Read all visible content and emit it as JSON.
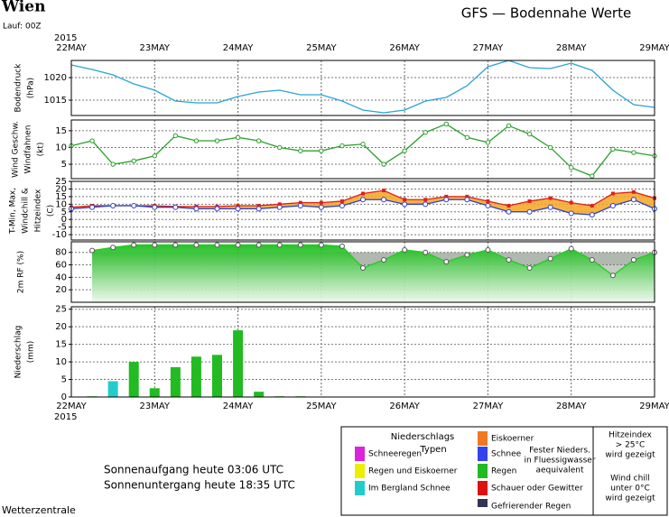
{
  "header": {
    "title": "Wien",
    "run": "Lauf: 00Z",
    "model": "GFS — Bodennahe Werte"
  },
  "time_axis": {
    "year": "2015",
    "labels": [
      "22MAY",
      "23MAY",
      "24MAY",
      "25MAY",
      "26MAY",
      "27MAY",
      "28MAY",
      "29MAY"
    ]
  },
  "chart_data": [
    {
      "type": "line",
      "ylabel": [
        "Bodendruck",
        "(hPa)"
      ],
      "ylim": [
        1011.6,
        1023.8
      ],
      "yticks": [
        1015,
        1020
      ],
      "grid": true,
      "series": [
        {
          "color": "#29a3d6",
          "values": [
            1022.8,
            1021.8,
            1020.6,
            1018.6,
            1017.2,
            1014.8,
            1014.4,
            1014.4,
            1015.8,
            1016.8,
            1017.2,
            1016.2,
            1016.2,
            1014.8,
            1012.8,
            1012.2,
            1012.8,
            1014.8,
            1015.6,
            1018.2,
            1022.4,
            1023.8,
            1022.2,
            1022,
            1023.2,
            1021.6,
            1017.2,
            1014,
            1013.4
          ]
        }
      ]
    },
    {
      "type": "line",
      "ylabel": [
        "Wind Geschw.",
        "Windfahnen",
        "(kt)"
      ],
      "ylim": [
        0.7,
        18.2
      ],
      "yticks": [
        5,
        10,
        15
      ],
      "grid": true,
      "markers": true,
      "series": [
        {
          "color": "#2ca02c",
          "values": [
            10.5,
            12,
            5,
            6,
            7.5,
            13.5,
            12,
            12,
            13,
            12,
            10,
            9,
            9,
            10.5,
            11,
            5,
            9,
            14.5,
            17,
            13,
            11.5,
            16.5,
            14,
            10,
            4,
            1.5,
            9.5,
            8.5,
            7.5
          ]
        }
      ]
    },
    {
      "type": "band",
      "ylabel": [
        "T-Min, Max,",
        "Windchill &",
        "Hitzeindex",
        "(C)"
      ],
      "ylim": [
        -13.5,
        25
      ],
      "yticks": [
        -10,
        -5,
        0,
        5,
        10,
        15,
        20,
        25
      ],
      "grid": true,
      "fill": "#f5a623",
      "series": [
        {
          "color": "#e0201b",
          "values": [
            8,
            9,
            9,
            9,
            9,
            8.5,
            8.5,
            8.5,
            9,
            9,
            10,
            11,
            11,
            12,
            17,
            19,
            13,
            13,
            15,
            15,
            12,
            9,
            12,
            14,
            11,
            9,
            17,
            18,
            14
          ]
        },
        {
          "color": "#2b3fd1",
          "values": [
            7,
            8,
            9,
            9,
            8,
            8,
            7,
            7,
            7,
            7,
            8,
            9,
            8,
            9,
            13,
            13,
            10,
            10,
            13,
            13,
            9,
            5,
            5,
            8,
            4,
            3,
            9,
            13,
            7
          ]
        }
      ]
    },
    {
      "type": "area",
      "ylabel": [
        "2m RF (%)"
      ],
      "ylim": [
        0,
        97
      ],
      "yticks": [
        20,
        40,
        60,
        80
      ],
      "grid": true,
      "series": [
        {
          "color": "#22cc22",
          "values": [
            null,
            83,
            88,
            92,
            92,
            92,
            92,
            92,
            92,
            92,
            92,
            92,
            92,
            90,
            55,
            68,
            84,
            80,
            65,
            76,
            84,
            68,
            55,
            70,
            86,
            68,
            43,
            68,
            80
          ]
        }
      ]
    },
    {
      "type": "bar",
      "ylabel": [
        "Niederschlag",
        "(mm)"
      ],
      "ylim": [
        0,
        25.7
      ],
      "yticks": [
        0,
        5,
        10,
        15,
        20,
        25
      ],
      "grid": true,
      "values": [
        0,
        0.2,
        4.5,
        10,
        2.5,
        8.5,
        11.5,
        12,
        19,
        1.5,
        0.2,
        0.2,
        0,
        0,
        0,
        0,
        0,
        0,
        0,
        0,
        0,
        0,
        0,
        0,
        0,
        0,
        0,
        0,
        0
      ],
      "colors": [
        "#22bb22",
        "#22bb22",
        "#22cccc",
        "#22bb22",
        "#22bb22",
        "#22bb22",
        "#22bb22",
        "#22bb22",
        "#22bb22",
        "#22bb22",
        "#22bb22",
        "#22bb22",
        "#22bb22",
        "#22bb22",
        "#22bb22",
        "#22bb22",
        "#22bb22",
        "#22bb22",
        "#22bb22",
        "#22bb22",
        "#22bb22",
        "#22bb22",
        "#22bb22",
        "#22bb22",
        "#22bb22",
        "#22bb22",
        "#22bb22",
        "#22bb22",
        "#22bb22"
      ]
    }
  ],
  "legend": {
    "title": [
      "Niederschlags",
      "Typen"
    ],
    "items": [
      {
        "label": "Schneeregen",
        "color": "#dd22dd"
      },
      {
        "label": "Regen und Eiskoerner",
        "color": "#eeee00"
      },
      {
        "label": "Im Bergland Schnee",
        "color": "#22cccc"
      },
      {
        "label": "Eiskoerner",
        "color": "#f07820"
      },
      {
        "label": "Schnee",
        "color": "#3344ee"
      },
      {
        "label": "Regen",
        "color": "#22bb22"
      },
      {
        "label": "Schauer oder Gewitter",
        "color": "#dd1111"
      },
      {
        "label": "Gefrierender Regen",
        "color": "#333355"
      }
    ],
    "note": [
      "Fester Nieders.",
      "in Fluessigwasser",
      "aequivalent"
    ],
    "heat": [
      "Hitzeindex",
      "> 25°C",
      "wird gezeigt"
    ],
    "chill": [
      "Wind chill",
      "unter 0°C",
      "wird gezeigt"
    ]
  },
  "footer": {
    "sunrise": "Sonnenaufgang heute 03:06 UTC",
    "sunset": "Sonnenuntergang heute 18:35 UTC",
    "source": "Wetterzentrale"
  }
}
